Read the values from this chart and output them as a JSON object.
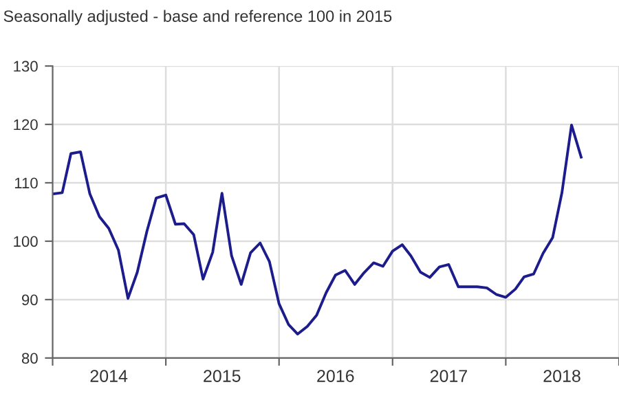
{
  "chart_data": {
    "type": "line",
    "title": "Seasonally adjusted - base and reference 100 in 2015",
    "x": [
      "2014-01",
      "2014-02",
      "2014-03",
      "2014-04",
      "2014-05",
      "2014-06",
      "2014-07",
      "2014-08",
      "2014-09",
      "2014-10",
      "2014-11",
      "2014-12",
      "2015-01",
      "2015-02",
      "2015-03",
      "2015-04",
      "2015-05",
      "2015-06",
      "2015-07",
      "2015-08",
      "2015-09",
      "2015-10",
      "2015-11",
      "2015-12",
      "2016-01",
      "2016-02",
      "2016-03",
      "2016-04",
      "2016-05",
      "2016-06",
      "2016-07",
      "2016-08",
      "2016-09",
      "2016-10",
      "2016-11",
      "2016-12",
      "2017-01",
      "2017-02",
      "2017-03",
      "2017-04",
      "2017-05",
      "2017-06",
      "2017-07",
      "2017-08",
      "2017-09",
      "2017-10",
      "2017-11",
      "2017-12",
      "2018-01",
      "2018-02",
      "2018-03",
      "2018-04",
      "2018-05",
      "2018-06",
      "2018-07",
      "2018-08",
      "2018-09"
    ],
    "series": [
      {
        "color": "#1c1c8c",
        "values": [
          108.1,
          108.3,
          115.0,
          115.3,
          108.1,
          104.2,
          102.2,
          98.5,
          90.2,
          94.7,
          101.7,
          107.4,
          107.9,
          102.9,
          103.0,
          101.1,
          93.5,
          98.1,
          108.2,
          97.5,
          92.6,
          98.0,
          99.7,
          96.5,
          89.3,
          85.7,
          84.1,
          85.4,
          87.3,
          91.2,
          94.2,
          95.0,
          92.6,
          94.6,
          96.3,
          95.7,
          98.3,
          99.4,
          97.5,
          94.7,
          93.8,
          95.6,
          96.0,
          92.2,
          92.2,
          92.2,
          92.0,
          90.9,
          90.4,
          91.8,
          93.9,
          94.4,
          97.9,
          100.6,
          108.3,
          119.9,
          114.4
        ]
      }
    ],
    "xlim": [
      "2014-01-01",
      "2019-01-01"
    ],
    "xticks": [
      {
        "value": "2014-01-01",
        "label": null
      },
      {
        "value": "2014-07-01",
        "label": "2014"
      },
      {
        "value": "2015-01-01",
        "label": null
      },
      {
        "value": "2015-07-01",
        "label": "2015"
      },
      {
        "value": "2016-01-01",
        "label": null
      },
      {
        "value": "2016-07-01",
        "label": "2016"
      },
      {
        "value": "2017-01-01",
        "label": null
      },
      {
        "value": "2017-07-01",
        "label": "2017"
      },
      {
        "value": "2018-01-01",
        "label": null
      },
      {
        "value": "2018-07-01",
        "label": "2018"
      },
      {
        "value": "2019-01-01",
        "label": null
      }
    ],
    "ylim": [
      80,
      130
    ],
    "yticks": [
      80,
      90,
      100,
      110,
      120,
      130
    ],
    "grid": true,
    "legend": false,
    "marker": "none",
    "line_style": "solid"
  }
}
